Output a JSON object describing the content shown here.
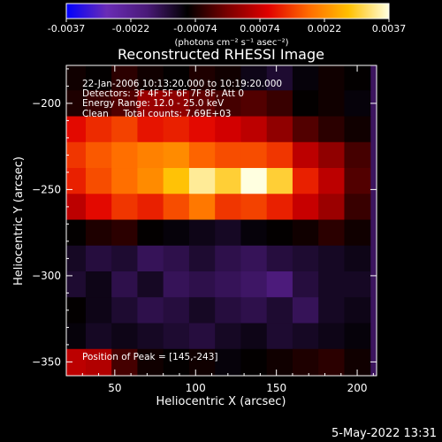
{
  "colorbar": {
    "tick_labels": [
      "-0.0037",
      "-0.0022",
      "-0.00074",
      "0.00074",
      "0.0022",
      "0.0037"
    ],
    "unit_label": "(photons cm⁻² s⁻¹ asec⁻²)",
    "range": [
      -0.0037,
      0.0037
    ]
  },
  "header": {
    "title": "Reconstructed RHESSI Image"
  },
  "info": {
    "time_range": "22-Jan-2006 10:13:20.000 to 10:19:20.000",
    "detectors": "Detectors: 3F 4F 5F 6F 7F 8F, Att 0",
    "energy_range": "Energy Range: 12.0 - 25.0 keV",
    "algorithm": "Clean     Total counts: 7.69E+03",
    "peak": "Position of Peak = [145,-243]"
  },
  "footer": {
    "datestamp": "5-May-2022 13:31"
  },
  "chart_data": {
    "type": "heatmap",
    "title": "Reconstructed RHESSI Image",
    "xlabel": "Heliocentric X (arcsec)",
    "ylabel": "Heliocentric Y (arcsec)",
    "xlim": [
      20,
      212
    ],
    "ylim": [
      -358,
      -178
    ],
    "x_ticks": [
      50,
      100,
      150,
      200
    ],
    "y_ticks": [
      -200,
      -250,
      -300,
      -350
    ],
    "x_tick_labels": [
      "50",
      "100",
      "150",
      "200"
    ],
    "y_tick_labels": [
      "−200",
      "−250",
      "−300",
      "−350"
    ],
    "value_range": [
      -0.0037,
      0.0037
    ],
    "peak_position": [
      145,
      -243
    ],
    "colormap": [
      "#0000ff",
      "#6a2cb5",
      "#4a1a78",
      "#000000",
      "#7a0000",
      "#e00000",
      "#ff6a00",
      "#ffc000",
      "#ffffe0"
    ],
    "x_centers": [
      24,
      40,
      56,
      72,
      88,
      104,
      120,
      136,
      152,
      168,
      184,
      200
    ],
    "y_centers": [
      -185,
      -200,
      -215,
      -230,
      -245,
      -260,
      -275,
      -290,
      -305,
      -320,
      -335,
      -350
    ],
    "values": [
      [
        -0.0008,
        -0.0009,
        -0.0006,
        -0.0008,
        -0.0009,
        -0.0007,
        -0.0008,
        -0.0011,
        -0.0013,
        -0.001,
        -0.0008,
        -0.0009
      ],
      [
        -0.0007,
        -0.0005,
        -0.0003,
        0.0003,
        0.0002,
        -0.0002,
        -0.0004,
        -0.0003,
        -0.0005,
        -0.0009,
        -0.0008,
        -0.001
      ],
      [
        0.001,
        0.0013,
        0.0015,
        0.0011,
        0.0012,
        0.001,
        0.0008,
        0.0006,
        0.0002,
        -0.0003,
        -0.0006,
        -0.0008
      ],
      [
        0.0014,
        0.0017,
        0.0019,
        0.0021,
        0.0022,
        0.0018,
        0.0016,
        0.0016,
        0.0014,
        0.0006,
        0.0002,
        -0.0004
      ],
      [
        0.0012,
        0.0016,
        0.0019,
        0.0022,
        0.0028,
        0.0034,
        0.003,
        0.0037,
        0.003,
        0.0012,
        0.0006,
        -0.0003
      ],
      [
        0.0006,
        0.001,
        0.0014,
        0.0012,
        0.0016,
        0.002,
        0.0014,
        0.0015,
        0.0012,
        0.0007,
        0.0003,
        -0.0005
      ],
      [
        -0.0009,
        -0.0007,
        -0.0006,
        -0.0009,
        -0.001,
        -0.0011,
        -0.0012,
        -0.001,
        -0.0009,
        -0.0008,
        -0.0006,
        -0.0008
      ],
      [
        -0.0012,
        -0.0014,
        -0.0013,
        -0.0016,
        -0.0015,
        -0.0013,
        -0.0015,
        -0.0016,
        -0.0014,
        -0.0013,
        -0.0012,
        -0.0011
      ],
      [
        -0.0013,
        -0.0011,
        -0.0015,
        -0.0012,
        -0.0016,
        -0.0015,
        -0.0016,
        -0.0017,
        -0.0019,
        -0.0014,
        -0.0012,
        -0.0012
      ],
      [
        -0.0009,
        -0.0011,
        -0.0013,
        -0.0015,
        -0.0014,
        -0.0012,
        -0.0014,
        -0.0015,
        -0.0013,
        -0.0016,
        -0.0012,
        -0.0011
      ],
      [
        -0.001,
        -0.0012,
        -0.0011,
        -0.0012,
        -0.0013,
        -0.0014,
        -0.0012,
        -0.0011,
        -0.0013,
        -0.0012,
        -0.0011,
        -0.001
      ],
      [
        0.0006,
        0.0005,
        -0.0004,
        -0.0008,
        -0.0009,
        -0.0008,
        -0.001,
        -0.0009,
        -0.0008,
        -0.0007,
        -0.0006,
        -0.0008
      ]
    ]
  }
}
